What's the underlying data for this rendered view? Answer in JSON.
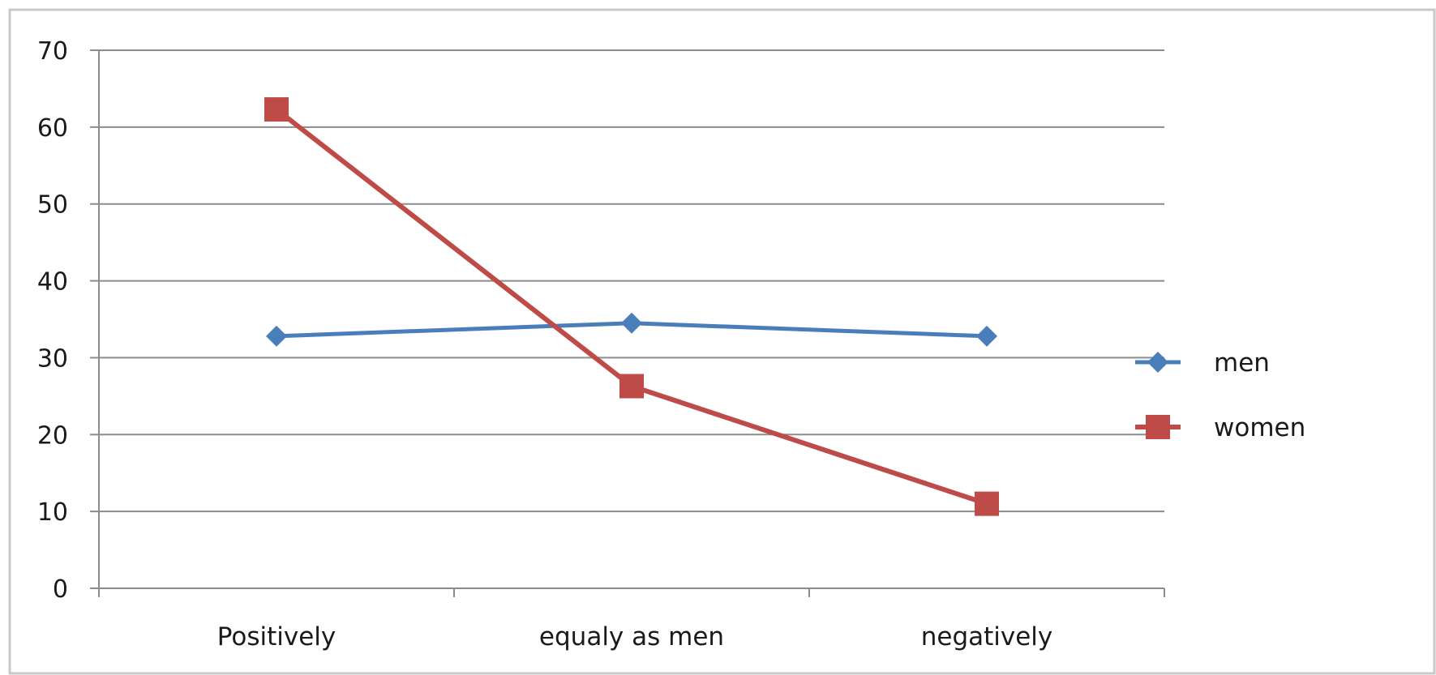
{
  "chart_data": {
    "type": "line",
    "title": "",
    "xlabel": "",
    "ylabel": "",
    "categories": [
      "Positively",
      "equaly as men",
      "negatively"
    ],
    "ylim": [
      0,
      70
    ],
    "yticks": [
      0,
      10,
      20,
      30,
      40,
      50,
      60,
      70
    ],
    "grid": true,
    "legend_position": "right",
    "series": [
      {
        "name": "men",
        "values": [
          32.8,
          34.5,
          32.8
        ],
        "color": "#4a7ebb",
        "marker": "diamond"
      },
      {
        "name": "women",
        "values": [
          62.3,
          26.3,
          11.0
        ],
        "color": "#be4b48",
        "marker": "square"
      }
    ]
  }
}
